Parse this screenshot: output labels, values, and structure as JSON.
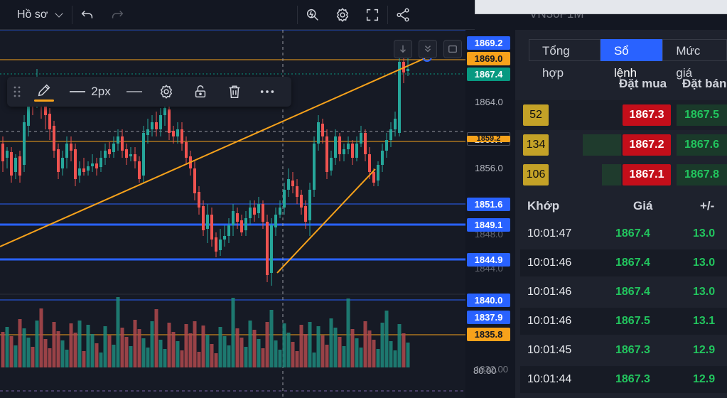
{
  "toolbar": {
    "profile_label": "Hồ sơ",
    "icons": [
      "undo-icon",
      "redo-icon",
      "magic-cursor-icon",
      "settings-icon",
      "fullscreen-icon",
      "share-icon"
    ]
  },
  "drawing_toolbar": {
    "line_width_label": "2px",
    "pen_color": "#f7a21b",
    "icons": [
      "grip-icon",
      "pencil-icon",
      "line-width-icon",
      "line-style-icon",
      "gear-icon",
      "unlock-icon",
      "trash-icon",
      "more-icon"
    ]
  },
  "price_labels": [
    {
      "value": "1869.2",
      "color": "#2962ff"
    },
    {
      "value": "1869.0",
      "color": "#f7a21b"
    },
    {
      "value": "1867.4",
      "color": "#089981"
    },
    {
      "value": "1860.4",
      "color": "#131722"
    },
    {
      "value": "1859.2",
      "color": "#f7a21b"
    },
    {
      "value": "1851.6",
      "color": "#2962ff"
    },
    {
      "value": "1849.1",
      "color": "#2962ff"
    },
    {
      "value": "1844.9",
      "color": "#2962ff"
    },
    {
      "value": "1840.0",
      "color": "#2962ff"
    },
    {
      "value": "1837.9",
      "color": "#2962ff"
    },
    {
      "value": "1835.8",
      "color": "#f7a21b"
    }
  ],
  "axis_ticks": [
    "1864.0",
    "1856.0",
    "1848.0",
    "1844.0",
    "1832.00",
    "80.00"
  ],
  "panel": {
    "symbol": "VN30F1M",
    "tabs": [
      "Tổng hợp",
      "Sổ lệnh",
      "Mức giá"
    ],
    "active_tab": 1,
    "orderbook_headers": {
      "bid": "Đặt mua",
      "ask": "Đặt bán"
    },
    "orderbook": [
      {
        "volume": "52",
        "bid": "1867.3",
        "ask": "1867.5"
      },
      {
        "volume": "134",
        "bid": "1867.2",
        "ask": "1867.6"
      },
      {
        "volume": "106",
        "bid": "1867.1",
        "ask": "1867.8"
      }
    ],
    "trades_headers": {
      "time": "Khớp",
      "price": "Giá",
      "change": "+/-"
    },
    "trades": [
      {
        "time": "10:01:47",
        "price": "1867.4",
        "change": "13.0"
      },
      {
        "time": "10:01:46",
        "price": "1867.4",
        "change": "13.0"
      },
      {
        "time": "10:01:46",
        "price": "1867.4",
        "change": "13.0"
      },
      {
        "time": "10:01:46",
        "price": "1867.5",
        "change": "13.1"
      },
      {
        "time": "10:01:45",
        "price": "1867.3",
        "change": "12.9"
      },
      {
        "time": "10:01:44",
        "price": "1867.3",
        "change": "12.9"
      }
    ]
  },
  "colors": {
    "up": "#26a69a",
    "down": "#ef5350",
    "drawing": "#f7a21b",
    "hline": "#2962ff"
  }
}
